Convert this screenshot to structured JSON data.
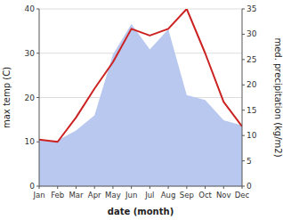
{
  "chart_data": {
    "type": "line",
    "xlabel": "date (month)",
    "ylabel": "max temp (C)",
    "y2label": "med. precipitation (kg/m2)",
    "categories": [
      "Jan",
      "Feb",
      "Mar",
      "Apr",
      "May",
      "Jun",
      "Jul",
      "Aug",
      "Sep",
      "Oct",
      "Nov",
      "Dec"
    ],
    "series": [
      {
        "type": "area",
        "axis": "y2",
        "color": "#b8c8ee",
        "values": [
          9,
          9,
          11,
          14,
          26,
          32,
          27,
          31,
          18,
          17,
          13,
          12
        ]
      },
      {
        "type": "line",
        "color": "#cc2222",
        "values": [
          10.5,
          10.0,
          15.5,
          22.0,
          28.0,
          35.5,
          34.0,
          35.5,
          40.0,
          30.0,
          19.0,
          13.5
        ]
      }
    ],
    "ylim": [
      0,
      40
    ],
    "yticks": [
      0,
      10,
      20,
      30,
      40
    ],
    "y2lim": [
      0,
      35
    ],
    "y2ticks": [
      0,
      5,
      10,
      15,
      20,
      25,
      30,
      35
    ],
    "grid": true
  }
}
